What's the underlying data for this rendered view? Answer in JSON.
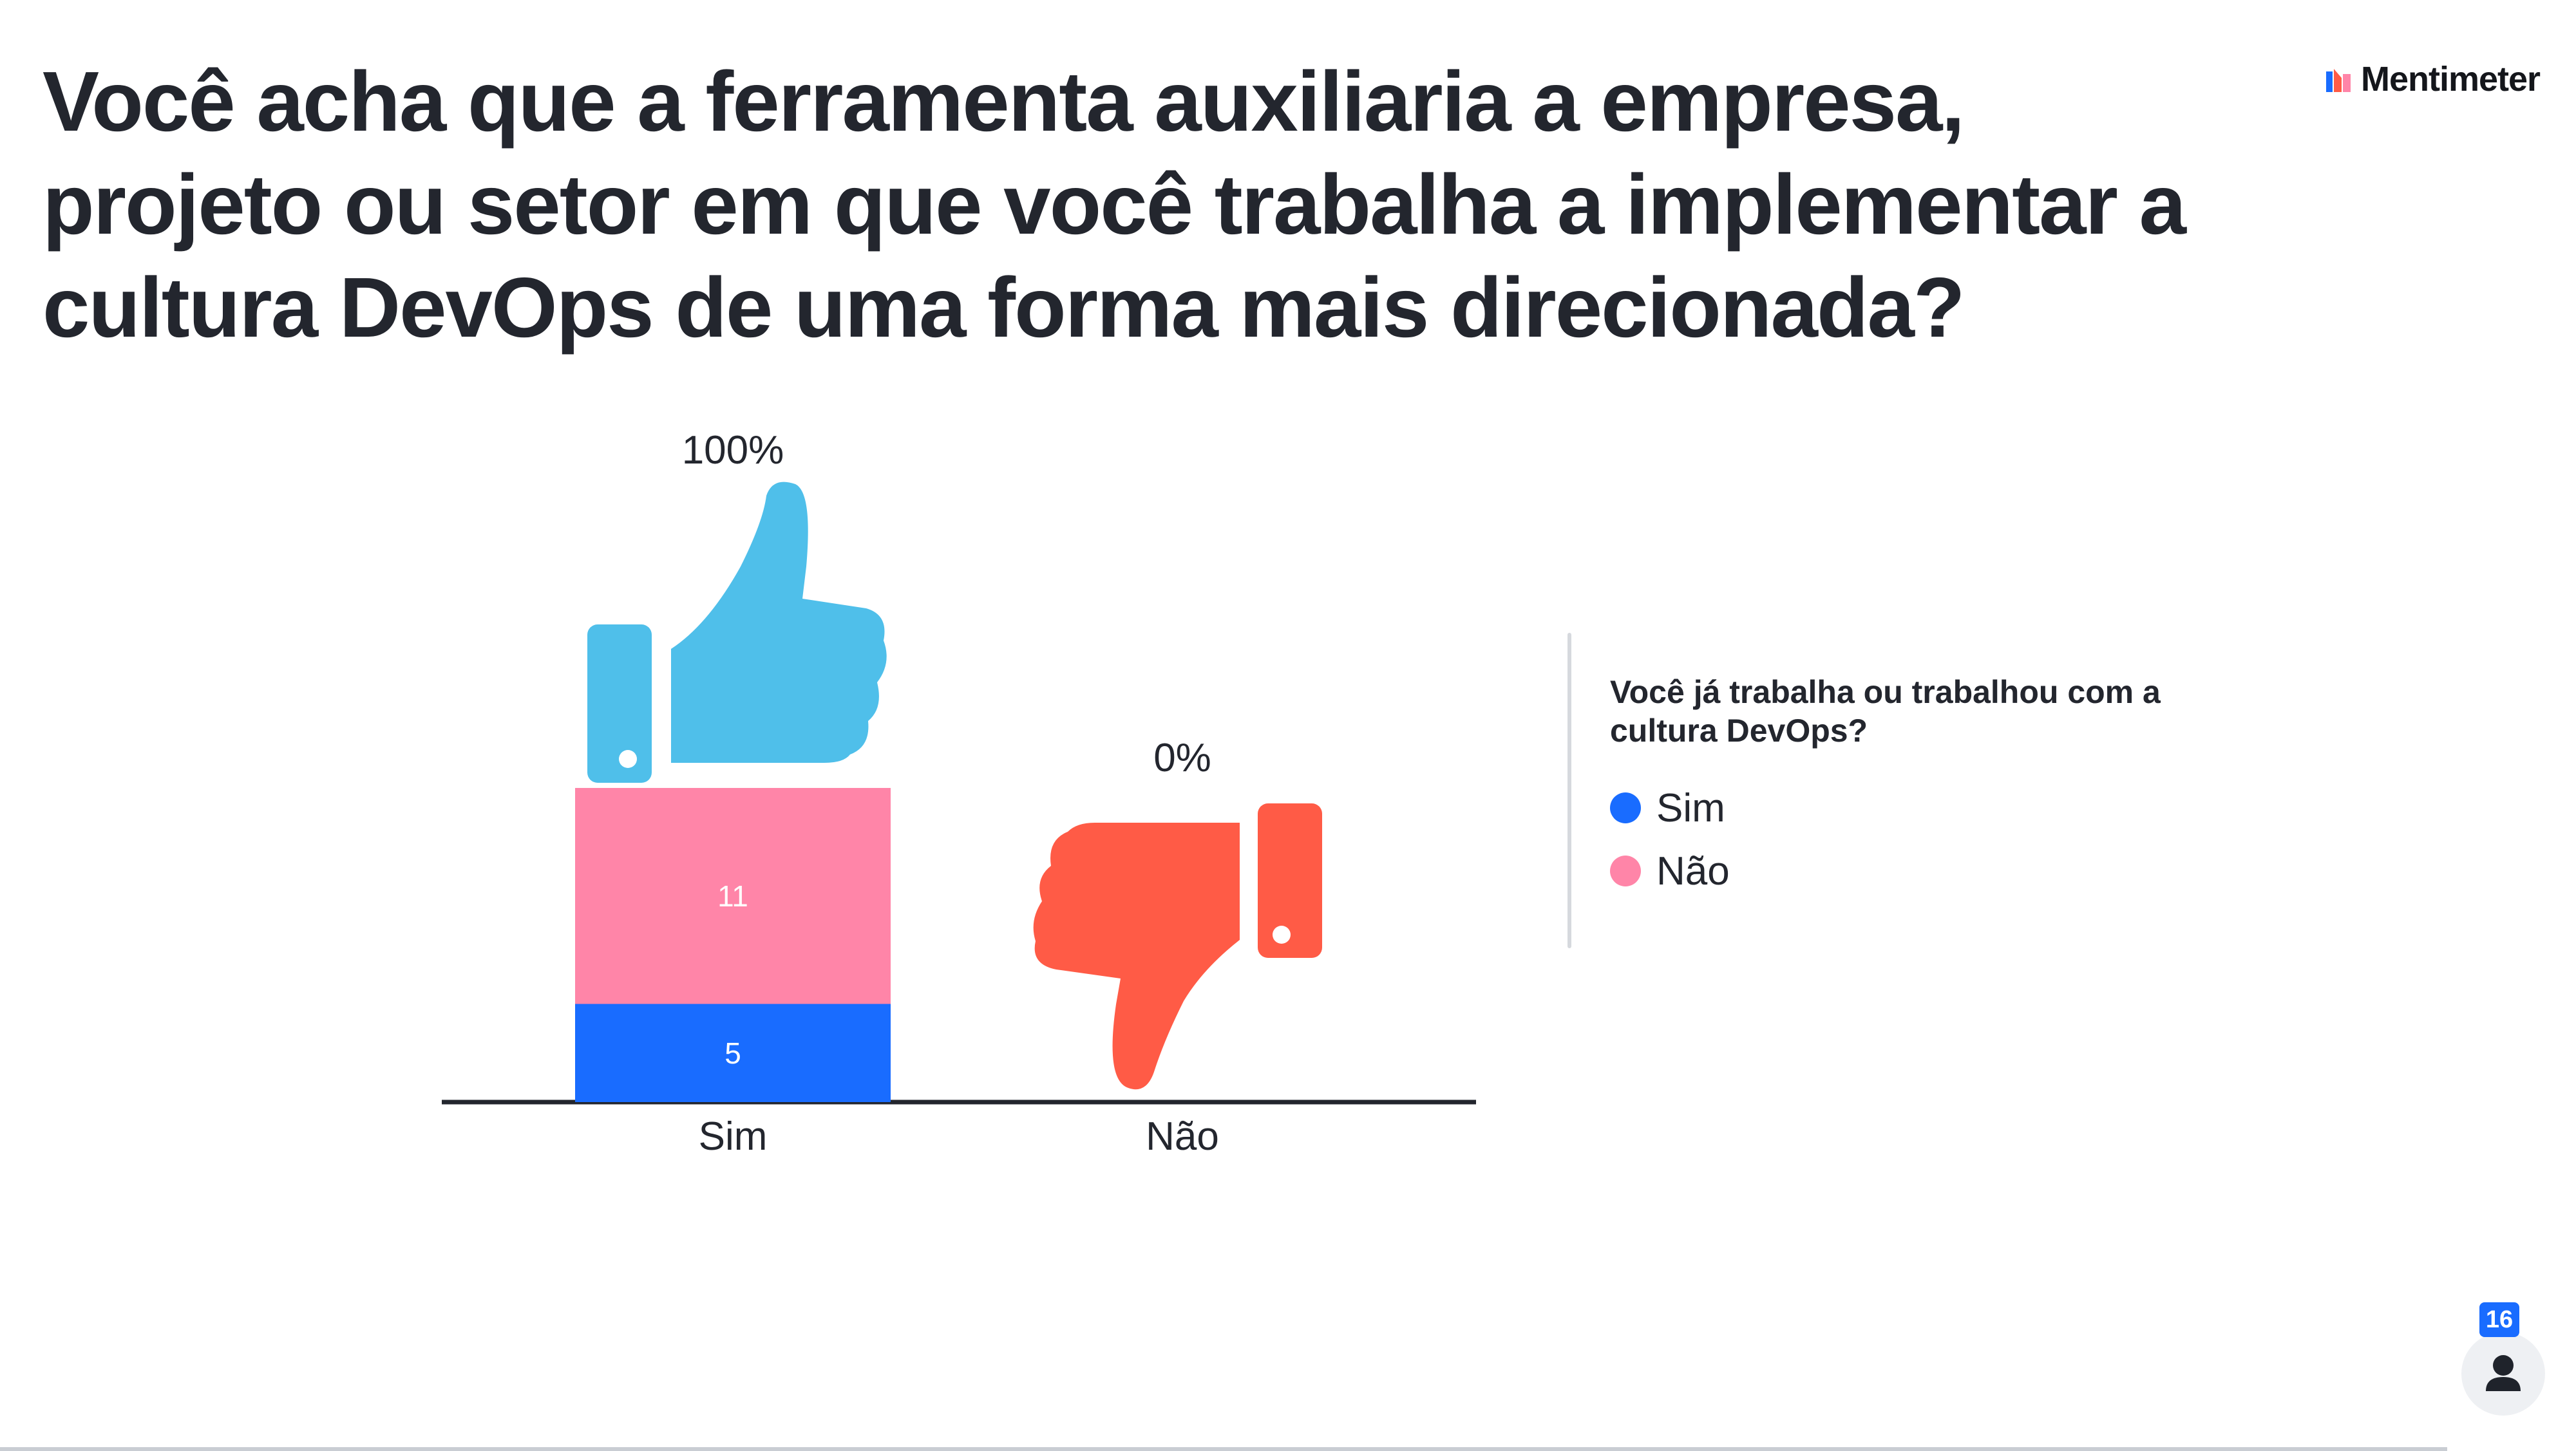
{
  "question": {
    "title": "Você acha que a ferramenta auxiliaria a empresa, projeto ou setor em que você trabalha a implementar a cultura DevOps de uma forma mais direcionada?"
  },
  "brand": {
    "name": "Mentimeter",
    "logo_icon": "mentimeter-logo-icon"
  },
  "chart_data": {
    "type": "bar",
    "stacked": true,
    "categories": [
      "Sim",
      "Não"
    ],
    "percent_labels": [
      "100%",
      "0%"
    ],
    "series": [
      {
        "name": "Sim",
        "values": [
          5,
          0
        ],
        "color": "#196cff"
      },
      {
        "name": "Não",
        "values": [
          11,
          0
        ],
        "color": "#ff85a8"
      }
    ],
    "category_icons": [
      "thumbs-up-icon",
      "thumbs-down-icon"
    ],
    "icon_colors": [
      "#4fbfea",
      "#ff5b46"
    ],
    "legend": {
      "title": "Você já trabalha ou trabalhou com a cultura DevOps?",
      "position": "right"
    },
    "grid": false,
    "ylim": [
      0,
      16
    ]
  },
  "participants": {
    "count": "16",
    "icon": "person-icon"
  }
}
